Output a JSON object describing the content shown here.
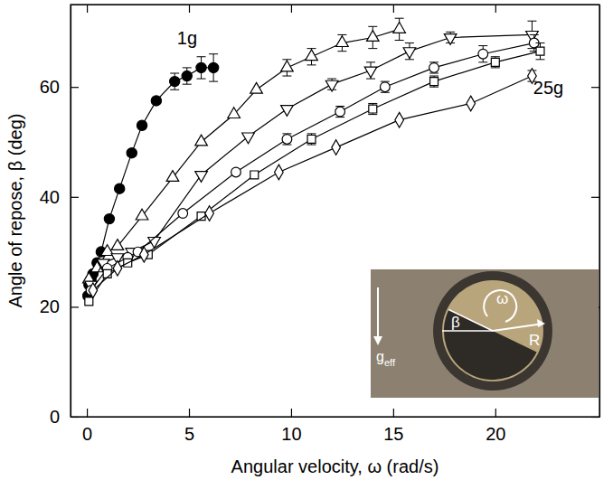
{
  "chart_data": {
    "type": "line",
    "x_label": "Angular velocity, ω (rad/s)",
    "y_label": "Angle of repose, β (deg)",
    "xlim": [
      -0.8,
      25.1
    ],
    "ylim": [
      0,
      75
    ],
    "xticks": [
      0,
      5,
      10,
      15,
      20
    ],
    "yticks": [
      0,
      20,
      40,
      60
    ],
    "series": [
      {
        "label": "1g",
        "color": "#000000",
        "marker": "circle-filled",
        "line_style": "solid",
        "x": [
          0.05,
          0.1,
          0.2,
          0.3,
          0.5,
          0.7,
          1.1,
          1.6,
          2.2,
          2.7,
          3.4,
          4.3,
          4.9,
          5.6,
          6.2
        ],
        "values": [
          22,
          24,
          25,
          26,
          28,
          30,
          36,
          41.5,
          48,
          53,
          57.5,
          61,
          62,
          63.5,
          63.5
        ],
        "errors": [
          null,
          null,
          null,
          null,
          null,
          null,
          null,
          null,
          null,
          null,
          null,
          1.5,
          1.5,
          2,
          2.5
        ]
      },
      {
        "color": "#000000",
        "marker": "triangle-up",
        "line_style": "solid",
        "x": [
          0.1,
          0.5,
          1,
          1.5,
          2.7,
          4.2,
          5.6,
          7.2,
          8.3,
          9.8,
          11,
          12.5,
          14,
          15.3
        ],
        "values": [
          25,
          27,
          30,
          31,
          36.5,
          43.5,
          50,
          55,
          59.5,
          63.5,
          65.5,
          68,
          69,
          70.5
        ],
        "errors": [
          null,
          null,
          null,
          null,
          null,
          null,
          null,
          null,
          null,
          1.5,
          1.5,
          1.5,
          2,
          2
        ]
      },
      {
        "color": "#000000",
        "marker": "triangle-down",
        "line_style": "solid",
        "x": [
          0.2,
          0.8,
          1.5,
          2.2,
          3.3,
          5.6,
          7.9,
          9.8,
          12,
          13.9,
          15.8,
          17.8,
          21.8
        ],
        "values": [
          24,
          28,
          29,
          30,
          32,
          44,
          51,
          56,
          60.5,
          63,
          66.5,
          69,
          69.5
        ],
        "errors": [
          null,
          null,
          null,
          null,
          null,
          null,
          null,
          null,
          1,
          1.5,
          1.5,
          1,
          2.5
        ]
      },
      {
        "color": "#000000",
        "marker": "circle",
        "line_style": "solid",
        "x": [
          0.2,
          1,
          2,
          2.5,
          4.7,
          7.3,
          9.8,
          12.4,
          14.6,
          17,
          19.4,
          21.9
        ],
        "values": [
          23,
          27,
          29,
          30,
          37,
          44.5,
          50.5,
          55.5,
          60,
          63.5,
          66,
          68
        ],
        "errors": [
          null,
          null,
          null,
          null,
          null,
          null,
          1,
          1,
          1,
          1,
          1.5,
          1.5
        ]
      },
      {
        "color": "#000000",
        "marker": "square",
        "line_style": "solid",
        "x": [
          0.1,
          1,
          2,
          3,
          5.6,
          8.2,
          11,
          14,
          17,
          20,
          22.2
        ],
        "values": [
          21,
          26,
          28,
          29.5,
          36.5,
          44,
          50.5,
          56,
          61,
          64.5,
          66.5
        ],
        "errors": [
          null,
          null,
          null,
          null,
          null,
          null,
          1,
          1,
          1,
          1,
          1.5
        ]
      },
      {
        "label": "25g",
        "color": "#000000",
        "marker": "diamond",
        "line_style": "solid",
        "x": [
          0.3,
          1.5,
          2.8,
          6,
          9.4,
          12.2,
          15.3,
          18.8,
          21.8
        ],
        "values": [
          23,
          27,
          29.5,
          37,
          44.5,
          49,
          54,
          57,
          62
        ],
        "errors": [
          null,
          null,
          null,
          null,
          null,
          null,
          null,
          null,
          1
        ]
      }
    ],
    "inset": {
      "omega": "ω",
      "beta": "β",
      "radius": "R",
      "gravity": "g",
      "gravity_sub": "eff"
    }
  }
}
